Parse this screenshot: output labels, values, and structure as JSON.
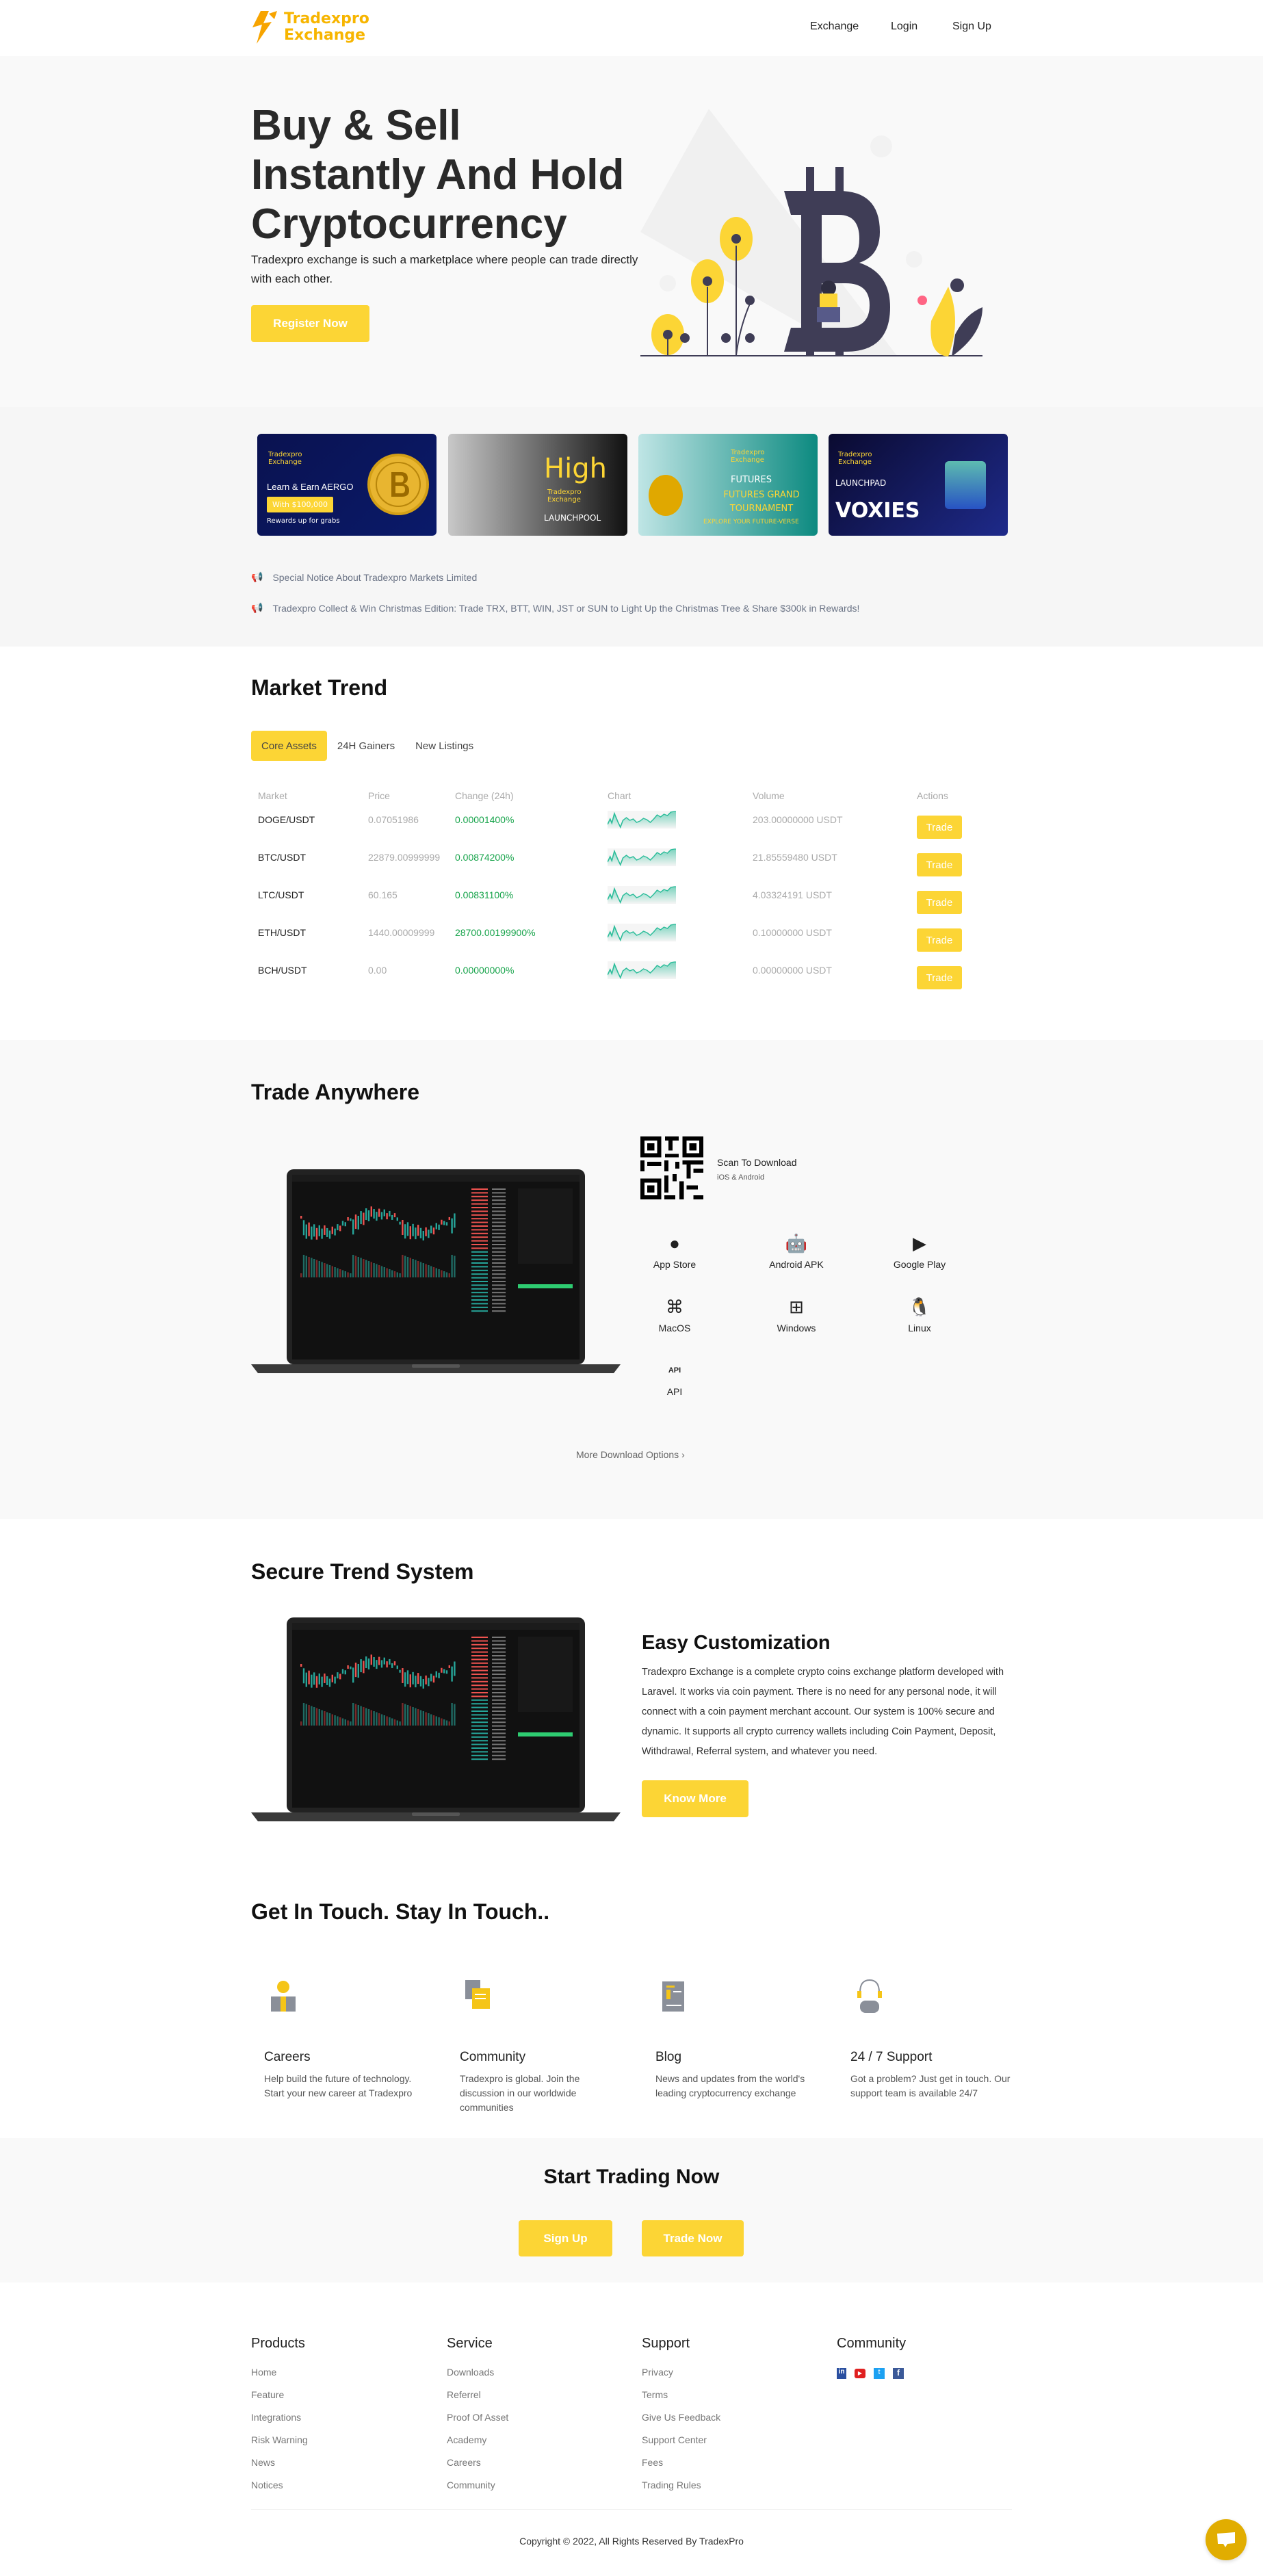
{
  "brand": {
    "line1": "Tradexpro",
    "line2": "Exchange",
    "accent": "#fcd535"
  },
  "nav": [
    "Exchange",
    "Login",
    "Sign Up"
  ],
  "hero": {
    "title_lines": [
      "Buy & Sell",
      "Instantly And Hold",
      "Cryptocurrency"
    ],
    "subtitle": "Tradexpro exchange is such a marketplace where people can trade directly with each other.",
    "cta": "Register Now"
  },
  "banners": [
    {
      "brand": "Tradexpro Exchange",
      "line1": "Learn & Earn AERGO",
      "badge": "With $100,000",
      "line2": "Rewards up for grabs"
    },
    {
      "brand": "Tradexpro Exchange",
      "line1": "High",
      "line2": "LAUNCHPOOL"
    },
    {
      "brand": "Tradexpro Exchange",
      "line1": "FUTURES",
      "line2": "FUTURES GRAND TOURNAMENT",
      "line3": "EXPLORE YOUR FUTURE-VERSE"
    },
    {
      "brand": "Tradexpro Exchange",
      "line1": "LAUNCHPAD",
      "line2": "VOXIES"
    }
  ],
  "notices": [
    "Special Notice About Tradexpro Markets Limited",
    "Tradexpro Collect & Win Christmas Edition: Trade TRX, BTT, WIN, JST or SUN to Light Up the Christmas Tree & Share $300k in Rewards!"
  ],
  "market": {
    "title": "Market Trend",
    "tabs": [
      "Core Assets",
      "24H Gainers",
      "New Listings"
    ],
    "active_tab": "Core Assets",
    "columns": [
      "Market",
      "Price",
      "Change (24h)",
      "Chart",
      "Volume",
      "Actions"
    ],
    "rows": [
      {
        "market": "DOGE/USDT",
        "price": "0.07051986",
        "change": "0.00001400%",
        "volume": "203.00000000 USDT",
        "action": "Trade"
      },
      {
        "market": "BTC/USDT",
        "price": "22879.00999999",
        "change": "0.00874200%",
        "volume": "21.85559480 USDT",
        "action": "Trade"
      },
      {
        "market": "LTC/USDT",
        "price": "60.165",
        "change": "0.00831100%",
        "volume": "4.03324191 USDT",
        "action": "Trade"
      },
      {
        "market": "ETH/USDT",
        "price": "1440.00009999",
        "change": "28700.00199900%",
        "volume": "0.10000000 USDT",
        "action": "Trade"
      },
      {
        "market": "BCH/USDT",
        "price": "0.00",
        "change": "0.00000000%",
        "volume": "0.00000000 USDT",
        "action": "Trade"
      }
    ],
    "positive_color": "#16a34a",
    "chart_color": "#2bbd9a"
  },
  "anywhere": {
    "title": "Trade Anywhere",
    "scan_title": "Scan To Download",
    "scan_sub": "iOS & Android",
    "downloads": [
      {
        "label": "App Store",
        "icon": "apple-icon",
        "glyph": ""
      },
      {
        "label": "Android APK",
        "icon": "android-icon",
        "glyph": "🤖"
      },
      {
        "label": "Google Play",
        "icon": "google-play-icon",
        "glyph": "▶"
      },
      {
        "label": "MacOS",
        "icon": "command-icon",
        "glyph": "⌘"
      },
      {
        "label": "Windows",
        "icon": "windows-icon",
        "glyph": "⊞"
      },
      {
        "label": "Linux",
        "icon": "linux-icon",
        "glyph": "🐧"
      },
      {
        "label": "API",
        "icon": "api-icon",
        "glyph": "API"
      }
    ],
    "more": "More Download Options"
  },
  "secure": {
    "title": "Secure Trend System",
    "heading": "Easy Customization",
    "body": "Tradexpro Exchange is a complete crypto coins exchange platform developed with Laravel. It works via coin payment. There is no need for any personal node, it will connect with a coin payment merchant account. Our system is 100% secure and dynamic. It supports all crypto currency wallets including Coin Payment, Deposit, Withdrawal, Referral system, and whatever you need.",
    "cta": "Know More"
  },
  "touch": {
    "title": "Get In Touch. Stay In Touch..",
    "items": [
      {
        "title": "Careers",
        "text": "Help build the future of technology. Start your new career at Tradexpro",
        "icon": "careers-icon"
      },
      {
        "title": "Community",
        "text": "Tradexpro is global. Join the discussion in our worldwide communities",
        "icon": "community-icon"
      },
      {
        "title": "Blog",
        "text": "News and updates from the world's leading cryptocurrency exchange",
        "icon": "blog-icon"
      },
      {
        "title": "24 / 7 Support",
        "text": "Got a problem? Just get in touch. Our support team is available 24/7",
        "icon": "support-icon"
      }
    ]
  },
  "cta": {
    "title": "Start Trading Now",
    "signup": "Sign Up",
    "trade": "Trade Now"
  },
  "footer": {
    "cols": [
      {
        "title": "Products",
        "links": [
          "Home",
          "Feature",
          "Integrations",
          "Risk Warning",
          "News",
          "Notices"
        ]
      },
      {
        "title": "Service",
        "links": [
          "Downloads",
          "Referrel",
          "Proof Of Asset",
          "Academy",
          "Careers",
          "Community"
        ]
      },
      {
        "title": "Support",
        "links": [
          "Privacy",
          "Terms",
          "Give Us Feedback",
          "Support Center",
          "Fees",
          "Trading Rules"
        ]
      }
    ],
    "community_title": "Community",
    "social": [
      "linkedin-icon",
      "youtube-icon",
      "twitter-icon",
      "facebook-icon"
    ],
    "copyright": "Copyright © 2022, All Rights Reserved By TradexPro"
  }
}
